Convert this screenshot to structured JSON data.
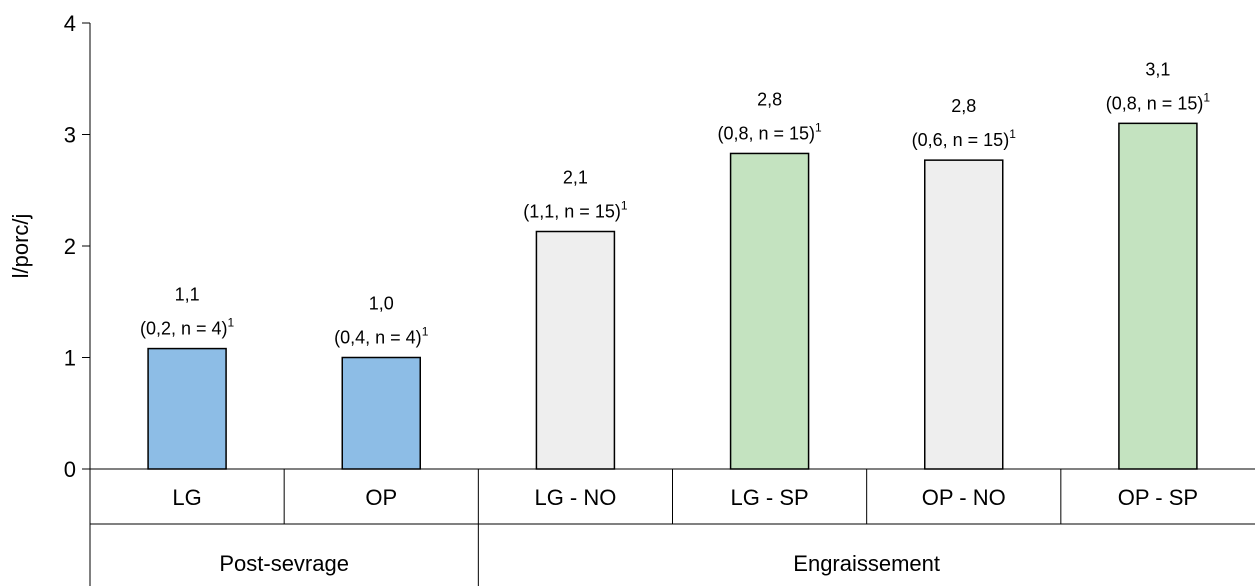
{
  "chart_data": {
    "type": "bar",
    "ylabel": "l/porc/j",
    "ylim": [
      0,
      4
    ],
    "yticks": [
      0,
      1,
      2,
      3,
      4
    ],
    "grid": false,
    "categories": [
      "LG",
      "OP",
      "LG - NO",
      "LG - SP",
      "OP - NO",
      "OP - SP"
    ],
    "values": [
      1.08,
      1.0,
      2.13,
      2.83,
      2.77,
      3.1
    ],
    "value_labels": [
      "1,1",
      "1,0",
      "2,1",
      "2,8",
      "2,8",
      "3,1"
    ],
    "detail_labels": [
      "(0,2, n = 4)",
      "(0,4, n = 4)",
      "(1,1, n = 15)",
      "(0,8, n = 15)",
      "(0,6, n = 15)",
      "(0,8, n = 15)"
    ],
    "footnote_mark": "1",
    "groups": [
      {
        "label": "Post-sevrage",
        "span": [
          0,
          1
        ]
      },
      {
        "label": "Engraissement",
        "span": [
          2,
          5
        ]
      }
    ],
    "colors": [
      "#8dbde6",
      "#8dbde6",
      "#eeeeee",
      "#c4e3c0",
      "#eeeeee",
      "#c4e3c0"
    ]
  }
}
